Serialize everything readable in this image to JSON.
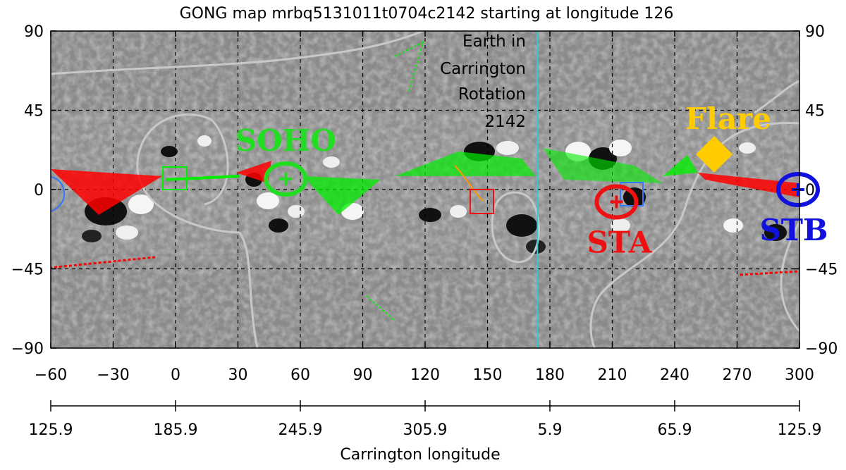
{
  "chart_data": {
    "type": "map",
    "title": "GONG map mrbq5131011t0704c2142 starting at longitude 126",
    "xlabel": "Carrington longitude",
    "xlim": [
      -60,
      300
    ],
    "ylim": [
      -90,
      90
    ],
    "x_ticks": [
      "−60",
      "−30",
      "0",
      "30",
      "60",
      "90",
      "120",
      "150",
      "180",
      "210",
      "240",
      "270",
      "300"
    ],
    "x_tick_values": [
      -60,
      -30,
      0,
      30,
      60,
      90,
      120,
      150,
      180,
      210,
      240,
      270,
      300
    ],
    "y_ticks_left": [
      "−90",
      "−45",
      "0",
      "45",
      "90"
    ],
    "y_ticks_right": [
      "−90",
      "−45",
      "0",
      "45",
      "90"
    ],
    "y_tick_values": [
      -90,
      -45,
      0,
      45,
      90
    ],
    "carrington_ticks": [
      "125.9",
      "185.9",
      "245.9",
      "305.9",
      "5.9",
      "65.9",
      "125.9"
    ],
    "carrington_tick_values": [
      -60,
      0,
      60,
      120,
      180,
      240,
      300
    ],
    "grid": true,
    "earth_line_x": 174,
    "earth_label": [
      "Earth in",
      "Carrington",
      "Rotation",
      "2142"
    ],
    "markers": [
      {
        "label": "SOHO",
        "x": 53,
        "y": 6,
        "color": "#22dd22"
      },
      {
        "label": "STA",
        "x": 212,
        "y": -7,
        "color": "#ee1111"
      },
      {
        "label": "STB",
        "x": 300,
        "y": 0,
        "color": "#1111dd"
      },
      {
        "label": "Flare",
        "x": 259,
        "y": 20,
        "color": "#ffcc00"
      }
    ],
    "neutral_line_color": "#c8c8c8",
    "open_field_colors": {
      "positive": "#ff0000",
      "negative": "#00ee00"
    }
  }
}
